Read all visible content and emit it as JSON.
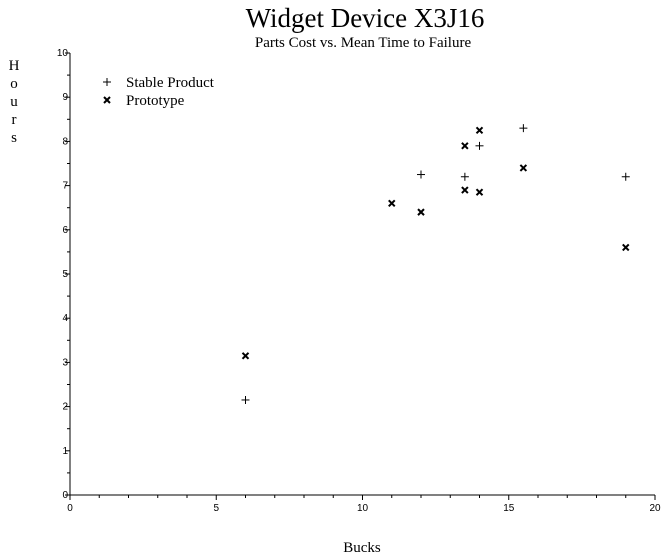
{
  "chart_data": {
    "type": "scatter",
    "title": "Widget Device X3J16",
    "subtitle": "Parts Cost vs. Mean Time to Failure",
    "xlabel": "Bucks",
    "ylabel": "Hours",
    "xlim": [
      0,
      20
    ],
    "ylim": [
      0,
      10
    ],
    "xticks": [
      0,
      5,
      10,
      15,
      20
    ],
    "yticks": [
      0,
      1,
      2,
      3,
      4,
      5,
      6,
      7,
      8,
      9,
      10
    ],
    "grid": false,
    "legend_position": "top-left",
    "series": [
      {
        "name": "Stable Product",
        "marker": "plus",
        "points": [
          {
            "x": 6,
            "y": 2.15
          },
          {
            "x": 12,
            "y": 7.25
          },
          {
            "x": 13.5,
            "y": 7.2
          },
          {
            "x": 14,
            "y": 7.9
          },
          {
            "x": 15.5,
            "y": 8.3
          },
          {
            "x": 19,
            "y": 7.2
          }
        ]
      },
      {
        "name": "Prototype",
        "marker": "cross",
        "points": [
          {
            "x": 6,
            "y": 3.15
          },
          {
            "x": 11,
            "y": 6.6
          },
          {
            "x": 12,
            "y": 6.4
          },
          {
            "x": 13.5,
            "y": 7.9
          },
          {
            "x": 13.5,
            "y": 6.9
          },
          {
            "x": 14,
            "y": 8.25
          },
          {
            "x": 14,
            "y": 6.85
          },
          {
            "x": 15.5,
            "y": 7.4
          },
          {
            "x": 19,
            "y": 5.6
          }
        ]
      }
    ]
  }
}
